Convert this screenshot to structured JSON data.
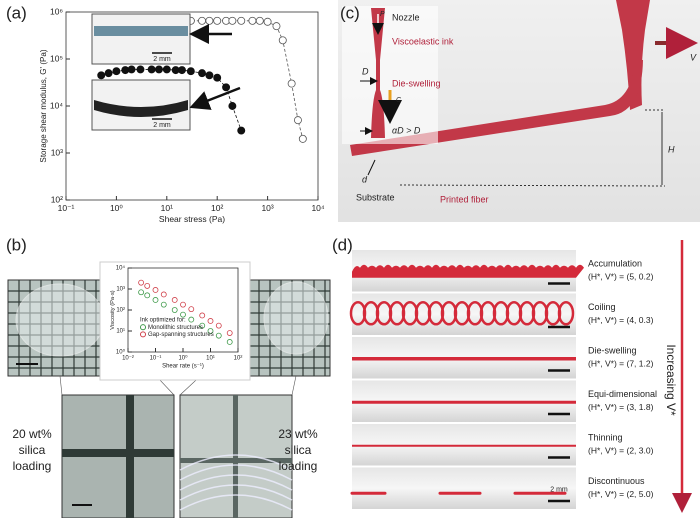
{
  "panels": {
    "a": "(a)",
    "b": "(b)",
    "c": "(c)",
    "d": "(d)"
  },
  "chart_data": [
    {
      "type": "scatter",
      "xlabel": "Shear stress (Pa)",
      "ylabel": "Storage shear modulus, G' (Pa)",
      "xlog": true,
      "ylog": true,
      "xlim": [
        0.1,
        10000
      ],
      "ylim": [
        100,
        1000000
      ],
      "xticks": [
        {
          "value": 0.1,
          "label": "10⁻¹"
        },
        {
          "value": 1,
          "label": "10⁰"
        },
        {
          "value": 10,
          "label": "10¹"
        },
        {
          "value": 100,
          "label": "10²"
        },
        {
          "value": 1000,
          "label": "10³"
        },
        {
          "value": 10000,
          "label": "10⁴"
        }
      ],
      "yticks": [
        {
          "value": 100,
          "label": "10²"
        },
        {
          "value": 1000,
          "label": "10³"
        },
        {
          "value": 10000,
          "label": "10⁴"
        },
        {
          "value": 100000,
          "label": "10⁵"
        },
        {
          "value": 1000000,
          "label": "10⁶"
        }
      ],
      "annotations": [
        "2 mm",
        "2 mm"
      ],
      "series": [
        {
          "marker": "open",
          "color": "#555555",
          "connect": "dashed",
          "x": [
            20,
            30,
            50,
            70,
            100,
            150,
            200,
            300,
            500,
            700,
            1000,
            1500,
            2000,
            3000,
            4000,
            5000
          ],
          "values": [
            600000,
            650000,
            650000,
            650000,
            650000,
            650000,
            650000,
            650000,
            650000,
            650000,
            620000,
            500000,
            250000,
            30000,
            5000,
            2000
          ]
        },
        {
          "marker": "filled",
          "color": "#111111",
          "connect": "dashed",
          "x": [
            0.5,
            0.7,
            1,
            1.5,
            2,
            3,
            5,
            7,
            10,
            15,
            20,
            30,
            50,
            70,
            100,
            150,
            200,
            300
          ],
          "values": [
            45000,
            50000,
            55000,
            58000,
            60000,
            60000,
            60000,
            60000,
            60000,
            58000,
            58000,
            55000,
            50000,
            45000,
            40000,
            25000,
            10000,
            3000
          ]
        }
      ]
    },
    {
      "type": "scatter",
      "xlabel": "Shear rate (s⁻¹)",
      "ylabel": "Viscosity (Pa·s)",
      "xlog": true,
      "ylog": true,
      "xlim": [
        0.01,
        100
      ],
      "ylim": [
        1,
        10000
      ],
      "xticks": [
        {
          "value": 0.01,
          "label": "10⁻²"
        },
        {
          "value": 0.1,
          "label": "10⁻¹"
        },
        {
          "value": 1,
          "label": "10⁰"
        },
        {
          "value": 10,
          "label": "10¹"
        },
        {
          "value": 100,
          "label": "10²"
        }
      ],
      "yticks": [
        {
          "value": 1,
          "label": "10⁰"
        },
        {
          "value": 10,
          "label": "10¹"
        },
        {
          "value": 100,
          "label": "10²"
        },
        {
          "value": 1000,
          "label": "10³"
        },
        {
          "value": 10000,
          "label": "10⁴"
        }
      ],
      "legend_title": "Ink optimized for:",
      "series": [
        {
          "name": "Monolithic structures",
          "marker": "open",
          "color": "#3f9a4a",
          "x": [
            0.03,
            0.05,
            0.1,
            0.2,
            0.5,
            1,
            2,
            5,
            10,
            20,
            50
          ],
          "values": [
            700,
            500,
            300,
            180,
            100,
            60,
            35,
            18,
            10,
            6,
            3
          ]
        },
        {
          "name": "Gap-spanning structures",
          "marker": "open",
          "color": "#d0404a",
          "x": [
            0.03,
            0.05,
            0.1,
            0.2,
            0.5,
            1,
            2,
            5,
            10,
            20,
            50
          ],
          "values": [
            2000,
            1400,
            900,
            550,
            300,
            180,
            110,
            55,
            30,
            18,
            8
          ]
        }
      ]
    }
  ],
  "panel_b": {
    "left_label": [
      "20 wt%",
      "silica",
      "loading"
    ],
    "right_label": [
      "23 wt%",
      "silica",
      "loading"
    ]
  },
  "panel_c": {
    "nozzle": "Nozzle",
    "ink": "Viscoelastic ink",
    "swelling": "Die-swelling",
    "D": "D",
    "aD": "αD > D",
    "P": "P",
    "C": "C",
    "V": "V",
    "H": "H",
    "d": "d",
    "substrate": "Substrate",
    "fiber": "Printed fiber"
  },
  "panel_d": {
    "rows": [
      {
        "name": "Accumulation",
        "params": "(H*, V*) = (5, 0.2)"
      },
      {
        "name": "Coiling",
        "params": "(H*, V*) = (4, 0.3)"
      },
      {
        "name": "Die-swelling",
        "params": "(H*, V*) = (7, 1.2)"
      },
      {
        "name": "Equi-dimensional",
        "params": "(H*, V*) = (3, 1.8)"
      },
      {
        "name": "Thinning",
        "params": "(H*, V*) = (2, 3.0)"
      },
      {
        "name": "Discontinuous",
        "params": "(H*, V*) = (2, 5.0)"
      }
    ],
    "arrow": "Increasing V*",
    "scale": "2 mm"
  }
}
